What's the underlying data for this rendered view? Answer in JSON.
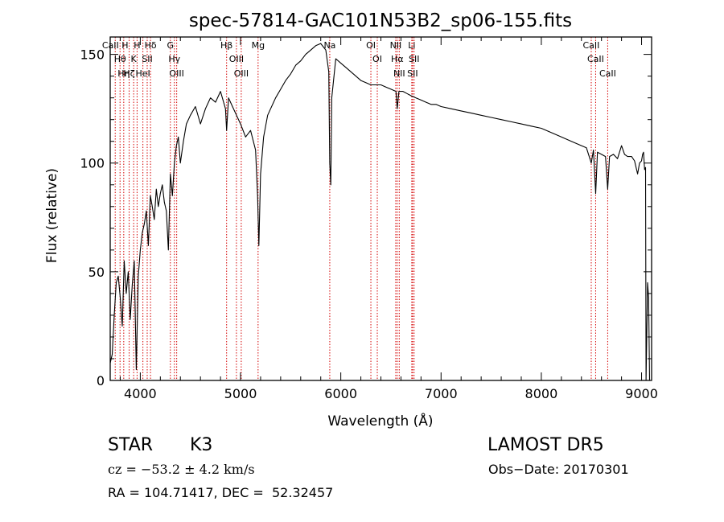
{
  "chart_data": {
    "type": "line",
    "title": "spec-57814-GAC101N53B2_sp06-155.fits",
    "xlabel": "Wavelength (Å)",
    "ylabel": "Flux (relative)",
    "xlim": [
      3700,
      9100
    ],
    "ylim": [
      0,
      158
    ],
    "xticks": [
      4000,
      5000,
      6000,
      7000,
      8000,
      9000
    ],
    "yticks": [
      0,
      50,
      100,
      150
    ],
    "grid": false,
    "legend": "none",
    "series": [
      {
        "points": [
          [
            3700,
            8
          ],
          [
            3720,
            12
          ],
          [
            3740,
            30
          ],
          [
            3760,
            45
          ],
          [
            3780,
            48
          ],
          [
            3800,
            38
          ],
          [
            3820,
            25
          ],
          [
            3840,
            55
          ],
          [
            3860,
            40
          ],
          [
            3880,
            50
          ],
          [
            3900,
            28
          ],
          [
            3920,
            44
          ],
          [
            3940,
            55
          ],
          [
            3960,
            5
          ],
          [
            3980,
            48
          ],
          [
            4000,
            60
          ],
          [
            4020,
            68
          ],
          [
            4040,
            72
          ],
          [
            4060,
            78
          ],
          [
            4080,
            62
          ],
          [
            4100,
            85
          ],
          [
            4120,
            80
          ],
          [
            4140,
            74
          ],
          [
            4160,
            88
          ],
          [
            4180,
            80
          ],
          [
            4200,
            86
          ],
          [
            4220,
            90
          ],
          [
            4240,
            82
          ],
          [
            4260,
            78
          ],
          [
            4280,
            60
          ],
          [
            4300,
            95
          ],
          [
            4320,
            85
          ],
          [
            4340,
            100
          ],
          [
            4360,
            108
          ],
          [
            4380,
            112
          ],
          [
            4400,
            100
          ],
          [
            4430,
            110
          ],
          [
            4460,
            118
          ],
          [
            4500,
            122
          ],
          [
            4550,
            126
          ],
          [
            4600,
            118
          ],
          [
            4650,
            125
          ],
          [
            4700,
            130
          ],
          [
            4750,
            128
          ],
          [
            4800,
            133
          ],
          [
            4850,
            125
          ],
          [
            4861,
            115
          ],
          [
            4880,
            130
          ],
          [
            4920,
            126
          ],
          [
            4960,
            122
          ],
          [
            5000,
            118
          ],
          [
            5050,
            112
          ],
          [
            5100,
            115
          ],
          [
            5150,
            106
          ],
          [
            5170,
            85
          ],
          [
            5183,
            62
          ],
          [
            5200,
            95
          ],
          [
            5230,
            112
          ],
          [
            5270,
            122
          ],
          [
            5300,
            125
          ],
          [
            5350,
            130
          ],
          [
            5400,
            134
          ],
          [
            5450,
            138
          ],
          [
            5500,
            141
          ],
          [
            5550,
            145
          ],
          [
            5600,
            147
          ],
          [
            5650,
            150
          ],
          [
            5700,
            152
          ],
          [
            5750,
            154
          ],
          [
            5800,
            155
          ],
          [
            5850,
            152
          ],
          [
            5880,
            142
          ],
          [
            5890,
            100
          ],
          [
            5900,
            90
          ],
          [
            5910,
            130
          ],
          [
            5950,
            148
          ],
          [
            6000,
            146
          ],
          [
            6050,
            144
          ],
          [
            6100,
            142
          ],
          [
            6150,
            140
          ],
          [
            6200,
            138
          ],
          [
            6250,
            137
          ],
          [
            6300,
            136
          ],
          [
            6350,
            136
          ],
          [
            6400,
            136
          ],
          [
            6450,
            135
          ],
          [
            6500,
            134
          ],
          [
            6550,
            133
          ],
          [
            6563,
            125
          ],
          [
            6580,
            133
          ],
          [
            6620,
            133
          ],
          [
            6660,
            132
          ],
          [
            6700,
            131
          ],
          [
            6750,
            130
          ],
          [
            6800,
            129
          ],
          [
            6850,
            128
          ],
          [
            6900,
            127
          ],
          [
            6950,
            127
          ],
          [
            7000,
            126
          ],
          [
            7100,
            125
          ],
          [
            7200,
            124
          ],
          [
            7300,
            123
          ],
          [
            7400,
            122
          ],
          [
            7500,
            121
          ],
          [
            7600,
            120
          ],
          [
            7700,
            119
          ],
          [
            7800,
            118
          ],
          [
            7900,
            117
          ],
          [
            8000,
            116
          ],
          [
            8100,
            114
          ],
          [
            8200,
            112
          ],
          [
            8300,
            110
          ],
          [
            8400,
            108
          ],
          [
            8450,
            107
          ],
          [
            8498,
            100
          ],
          [
            8520,
            106
          ],
          [
            8542,
            86
          ],
          [
            8560,
            105
          ],
          [
            8600,
            104
          ],
          [
            8640,
            103
          ],
          [
            8662,
            88
          ],
          [
            8680,
            103
          ],
          [
            8720,
            104
          ],
          [
            8760,
            102
          ],
          [
            8800,
            108
          ],
          [
            8830,
            104
          ],
          [
            8860,
            103
          ],
          [
            8900,
            103
          ],
          [
            8930,
            101
          ],
          [
            8960,
            95
          ],
          [
            8980,
            100
          ],
          [
            9000,
            101
          ],
          [
            9010,
            104
          ],
          [
            9020,
            105
          ],
          [
            9030,
            97
          ],
          [
            9040,
            98
          ],
          [
            9045,
            0
          ],
          [
            9060,
            45
          ],
          [
            9070,
            38
          ],
          [
            9080,
            0
          ]
        ]
      }
    ],
    "line_markers": [
      {
        "wl": 3750,
        "label": "CaII H"
      },
      {
        "wl": 3798,
        "label": "Hθ"
      },
      {
        "wl": 3835,
        "label": "Hη"
      },
      {
        "wl": 3889,
        "label": "Hζ"
      },
      {
        "wl": 3934,
        "label": "K"
      },
      {
        "wl": 3968,
        "label": "H"
      },
      {
        "wl": 4026,
        "label": "HeI"
      },
      {
        "wl": 4069,
        "label": "SII"
      },
      {
        "wl": 4102,
        "label": "Hδ"
      },
      {
        "wl": 4300,
        "label": "G"
      },
      {
        "wl": 4340,
        "label": "Hγ"
      },
      {
        "wl": 4363,
        "label": "OIII"
      },
      {
        "wl": 4861,
        "label": "Hβ"
      },
      {
        "wl": 4959,
        "label": "OIII"
      },
      {
        "wl": 5007,
        "label": "OIII"
      },
      {
        "wl": 5175,
        "label": "Mg"
      },
      {
        "wl": 5890,
        "label": "Na"
      },
      {
        "wl": 6300,
        "label": "OI"
      },
      {
        "wl": 6364,
        "label": "OI"
      },
      {
        "wl": 6548,
        "label": "NII"
      },
      {
        "wl": 6563,
        "label": "Hα"
      },
      {
        "wl": 6583,
        "label": "NII"
      },
      {
        "wl": 6708,
        "label": "Li"
      },
      {
        "wl": 6716,
        "label": "SII"
      },
      {
        "wl": 6731,
        "label": "SII"
      },
      {
        "wl": 8498,
        "label": "CaII"
      },
      {
        "wl": 8542,
        "label": "CaII"
      },
      {
        "wl": 8662,
        "label": "CaII"
      }
    ],
    "marker_color": "#d40000"
  },
  "info": {
    "class_label": "STAR",
    "subclass": "K3",
    "velocity": "cz = −53.2 ± 4.2 km/s",
    "coords": "RA = 104.71417, DEC =  52.32457",
    "survey": "LAMOST DR5",
    "obs_date": "Obs−Date: 20170301"
  }
}
